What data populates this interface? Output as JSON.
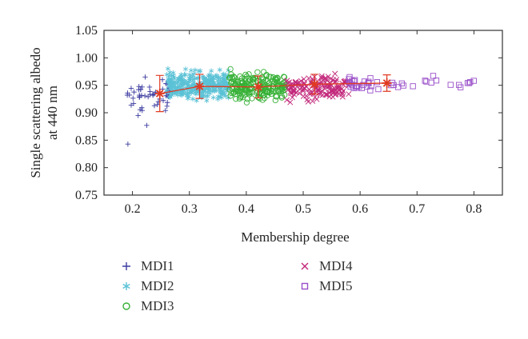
{
  "chart_data": {
    "type": "scatter",
    "title": "",
    "xlabel": "Membership degree",
    "ylabel_lines": [
      "Single scattering albedo",
      "at 440 nm"
    ],
    "xlim": [
      0.15,
      0.85
    ],
    "ylim": [
      0.75,
      1.05
    ],
    "xticks": [
      "0.2",
      "0.3",
      "0.4",
      "0.5",
      "0.6",
      "0.7",
      "0.8"
    ],
    "yticks": [
      "0.75",
      "0.80",
      "0.85",
      "0.90",
      "0.95",
      "1.00",
      "1.05"
    ],
    "grid": false,
    "legend_position": "bottom",
    "series": [
      {
        "name": "MDI1",
        "marker": "plus",
        "color": "#3b3ba0",
        "x_range": [
          0.19,
          0.27
        ],
        "y_center": 0.935,
        "y_spread": 0.045,
        "count": 55,
        "outliers": [
          [
            0.192,
            0.843
          ],
          [
            0.21,
            0.895
          ],
          [
            0.225,
            0.877
          ]
        ]
      },
      {
        "name": "MDI2",
        "marker": "asterisk",
        "color": "#5bc2d6",
        "x_range": [
          0.26,
          0.37
        ],
        "y_center": 0.95,
        "y_spread": 0.035,
        "count": 320
      },
      {
        "name": "MDI3",
        "marker": "circle",
        "color": "#35b035",
        "x_range": [
          0.37,
          0.47
        ],
        "y_center": 0.947,
        "y_spread": 0.035,
        "count": 200
      },
      {
        "name": "MDI4",
        "marker": "x",
        "color": "#c2277a",
        "x_range": [
          0.47,
          0.58
        ],
        "y_center": 0.945,
        "y_spread": 0.032,
        "count": 150
      },
      {
        "name": "MDI5",
        "marker": "square",
        "color": "#9a4fc9",
        "x_range": [
          0.58,
          0.8
        ],
        "y_center": 0.952,
        "y_spread": 0.02,
        "count": 45
      }
    ],
    "mean_series": {
      "color": "#e03a22",
      "points": [
        {
          "x": 0.248,
          "y": 0.935,
          "err": 0.033
        },
        {
          "x": 0.318,
          "y": 0.948,
          "err": 0.022
        },
        {
          "x": 0.421,
          "y": 0.947,
          "err": 0.02
        },
        {
          "x": 0.52,
          "y": 0.952,
          "err": 0.018
        },
        {
          "x": 0.647,
          "y": 0.954,
          "err": 0.015
        }
      ]
    }
  }
}
